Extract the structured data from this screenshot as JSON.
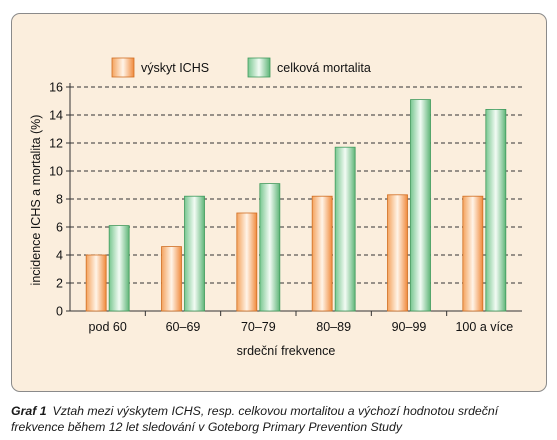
{
  "chart_data": {
    "type": "bar",
    "categories": [
      "pod 60",
      "60–69",
      "70–79",
      "80–89",
      "90–99",
      "100 a více"
    ],
    "series": [
      {
        "name": "výskyt ICHS",
        "values": [
          4.0,
          4.6,
          7.0,
          8.2,
          8.3,
          8.2
        ],
        "color": "#f08a3c"
      },
      {
        "name": "celková mortalita",
        "values": [
          6.1,
          8.2,
          9.1,
          11.7,
          15.1,
          14.4
        ],
        "color": "#6fbf86"
      }
    ],
    "xlabel": "srdeční frekvence",
    "ylabel": "incidence ICHS a mortalita (%)",
    "ylim": [
      0,
      16
    ],
    "yticks": [
      "0",
      "2",
      "4",
      "6",
      "8",
      "10",
      "12",
      "14",
      "16"
    ],
    "grid": true,
    "legend_position": "top"
  },
  "caption": {
    "label": "Graf 1",
    "text": "Vztah mezi výskytem ICHS, resp. celkovou mortalitou a výchozí hodnotou srdeční frekvence během 12 let sledování v Goteborg Primary Prevention Study"
  }
}
